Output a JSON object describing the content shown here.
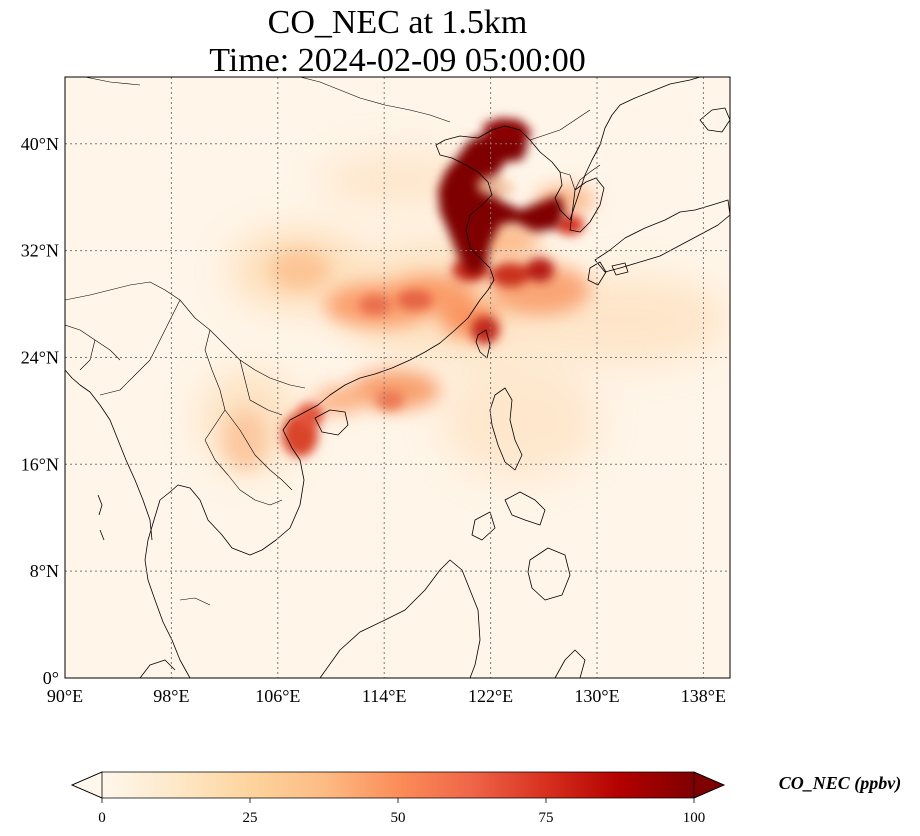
{
  "figure": {
    "title_line1": "CO_NEC at 1.5km",
    "title_line2": "Time: 2024-02-09 05:00:00"
  },
  "map": {
    "lon_range": [
      90,
      140
    ],
    "lat_range": [
      0,
      45
    ],
    "lon_ticks": [
      {
        "value": 90,
        "label": "90°E"
      },
      {
        "value": 98,
        "label": "98°E"
      },
      {
        "value": 106,
        "label": "106°E"
      },
      {
        "value": 114,
        "label": "114°E"
      },
      {
        "value": 122,
        "label": "122°E"
      },
      {
        "value": 130,
        "label": "130°E"
      },
      {
        "value": 138,
        "label": "138°E"
      }
    ],
    "lat_ticks": [
      {
        "value": 0,
        "label": "0°"
      },
      {
        "value": 8,
        "label": "8°N"
      },
      {
        "value": 16,
        "label": "16°N"
      },
      {
        "value": 24,
        "label": "24°N"
      },
      {
        "value": 32,
        "label": "32°N"
      },
      {
        "value": 40,
        "label": "40°N"
      }
    ],
    "gridlines": true,
    "gridline_style": "dotted gray",
    "coastlines": true,
    "borders": true,
    "field": "CO_NEC",
    "plume_regions": [
      {
        "name": "North China Plain",
        "lon": 119.5,
        "lat": 36,
        "level": "above max"
      },
      {
        "name": "Bohai / Liaodong",
        "lon": 120.5,
        "lat": 40,
        "level": "above max"
      },
      {
        "name": "Yellow Sea plume",
        "lon": 125,
        "lat": 35,
        "level": "above max"
      },
      {
        "name": "Yangtze River Delta",
        "lon": 121,
        "lat": 31,
        "level": "high"
      },
      {
        "name": "East China Sea",
        "lon": 125,
        "lat": 30,
        "level": "high"
      },
      {
        "name": "Northern Taiwan",
        "lon": 121.5,
        "lat": 25.5,
        "level": "high"
      },
      {
        "name": "Central China",
        "lon": 113,
        "lat": 28,
        "level": "medium"
      },
      {
        "name": "Gulf of Tonkin",
        "lon": 107,
        "lat": 18,
        "level": "high"
      },
      {
        "name": "South China coast",
        "lon": 114,
        "lat": 21.5,
        "level": "medium"
      }
    ]
  },
  "colorbar": {
    "title": "CO_NEC (ppbv)",
    "ticks": [
      {
        "value": 0,
        "label": "0"
      },
      {
        "value": 25,
        "label": "25"
      },
      {
        "value": 50,
        "label": "50"
      },
      {
        "value": 75,
        "label": "75"
      },
      {
        "value": 100,
        "label": "100"
      }
    ],
    "range": [
      0,
      100
    ],
    "extend": "both",
    "colormap": [
      "#fff7ec",
      "#fee8c8",
      "#fdd49e",
      "#fdbb84",
      "#fc8d59",
      "#ef6548",
      "#d7301f",
      "#b30000",
      "#7f0000"
    ]
  }
}
